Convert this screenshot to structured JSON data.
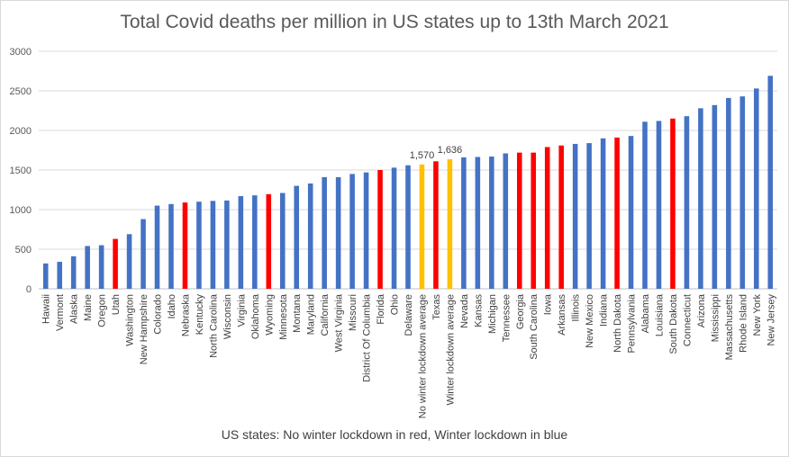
{
  "chart_data": {
    "type": "bar",
    "title": "Total Covid deaths per million in US states up to 13th March 2021",
    "caption": "US states: No winter lockdown in red, Winter lockdown in blue",
    "ylim": [
      0,
      3000
    ],
    "yticks": [
      0,
      500,
      1000,
      1500,
      2000,
      2500,
      3000
    ],
    "grid": true,
    "colors": {
      "winter_lockdown": "#4472c4",
      "no_winter_lockdown": "#ff0000",
      "average": "#ffc000"
    },
    "categories": [
      "Hawaii",
      "Vermont",
      "Alaska",
      "Maine",
      "Oregon",
      "Utah",
      "Washington",
      "New Hampshire",
      "Colorado",
      "Idaho",
      "Nebraska",
      "Kentucky",
      "North Carolina",
      "Wisconsin",
      "Virginia",
      "Oklahoma",
      "Wyoming",
      "Minnesota",
      "Montana",
      "Maryland",
      "California",
      "West Virginia",
      "Missouri",
      "District Of Columbia",
      "Florida",
      "Ohio",
      "Delaware",
      "No winter lockdown average",
      "Texas",
      "Winter lockdown average",
      "Nevada",
      "Kansas",
      "Michigan",
      "Tennessee",
      "Georgia",
      "South Carolina",
      "Iowa",
      "Arkansas",
      "Illinois",
      "New Mexico",
      "Indiana",
      "North Dakota",
      "Pennsylvania",
      "Alabama",
      "Louisiana",
      "South Dakota",
      "Connecticut",
      "Arizona",
      "Mississippi",
      "Massachusetts",
      "Rhode Island",
      "New York",
      "New Jersey"
    ],
    "values": [
      320,
      340,
      410,
      540,
      550,
      630,
      690,
      880,
      1050,
      1070,
      1090,
      1100,
      1110,
      1115,
      1170,
      1180,
      1195,
      1210,
      1300,
      1330,
      1410,
      1410,
      1450,
      1470,
      1500,
      1530,
      1560,
      1570,
      1610,
      1636,
      1660,
      1665,
      1670,
      1710,
      1720,
      1720,
      1790,
      1810,
      1830,
      1840,
      1900,
      1910,
      1930,
      2110,
      2120,
      2150,
      2180,
      2280,
      2320,
      2410,
      2430,
      2530,
      2690
    ],
    "group": [
      "winter",
      "winter",
      "winter",
      "winter",
      "winter",
      "red",
      "winter",
      "winter",
      "winter",
      "winter",
      "red",
      "winter",
      "winter",
      "winter",
      "winter",
      "winter",
      "red",
      "winter",
      "winter",
      "winter",
      "winter",
      "winter",
      "winter",
      "winter",
      "red",
      "winter",
      "winter",
      "avg",
      "red",
      "avg",
      "winter",
      "winter",
      "winter",
      "winter",
      "red",
      "red",
      "red",
      "red",
      "winter",
      "winter",
      "winter",
      "red",
      "winter",
      "winter",
      "winter",
      "red",
      "winter",
      "winter",
      "winter",
      "winter",
      "winter",
      "winter",
      "winter"
    ],
    "data_labels": {
      "No winter lockdown average": "1,570",
      "Winter lockdown average": "1,636"
    }
  }
}
